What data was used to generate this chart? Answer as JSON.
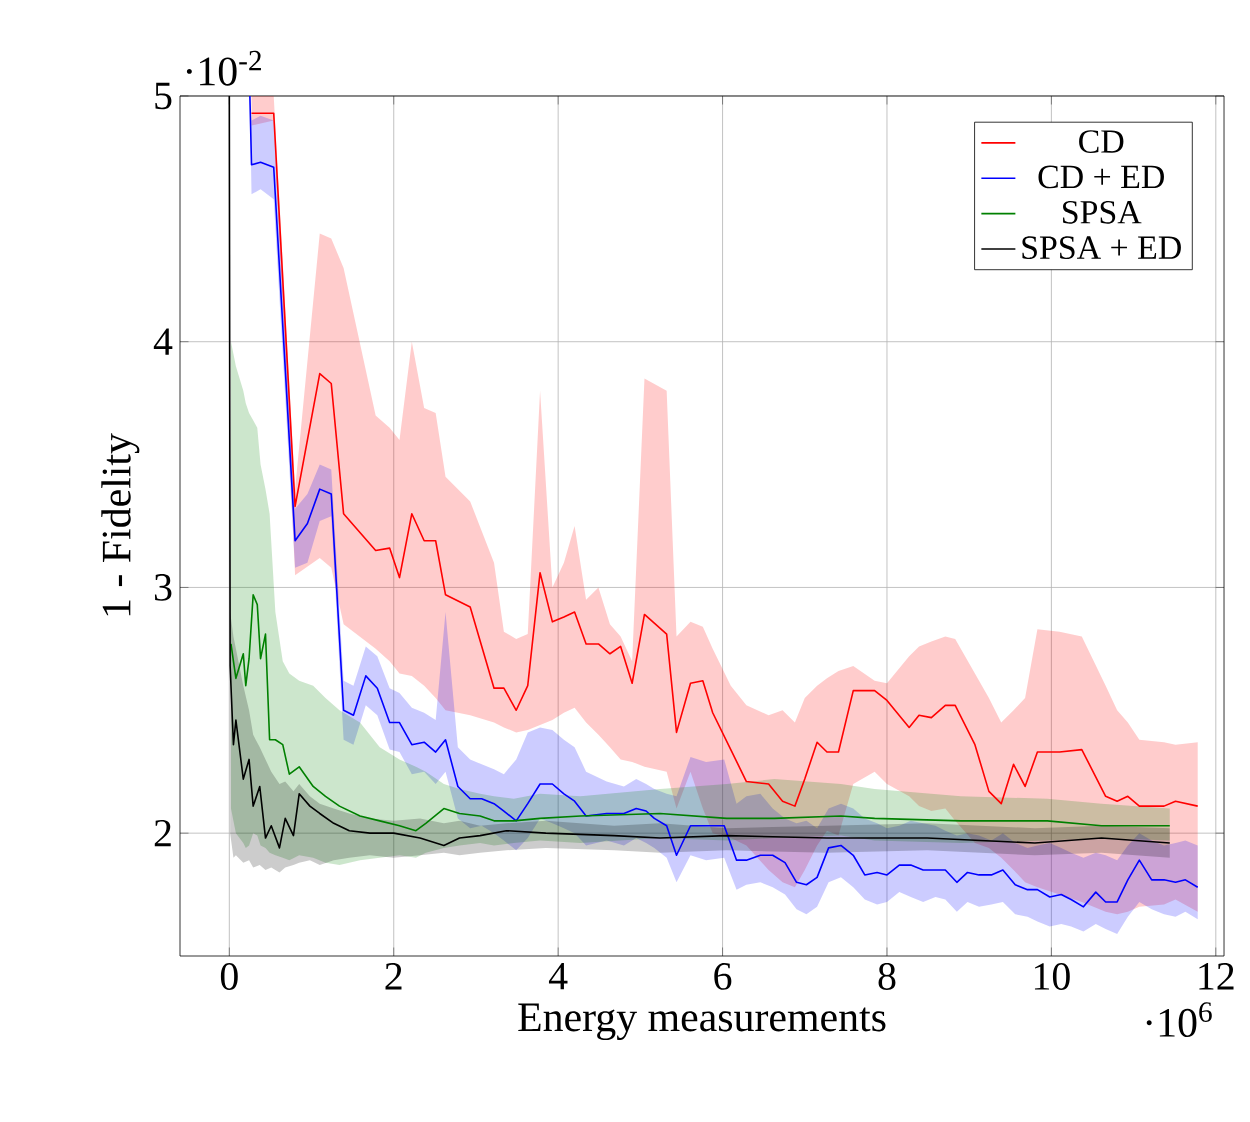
{
  "chart_data": {
    "type": "line",
    "xlabel": "Energy measurements",
    "ylabel": "1 - Fidelity",
    "annotations": [
      "·10$^{-2}$",
      "·10$^{6}$"
    ],
    "xlim": [
      -0.6,
      12.1
    ],
    "ylim": [
      1.5,
      5
    ],
    "xticks": [
      0,
      2,
      4,
      6,
      8,
      10,
      12
    ],
    "yticks": [
      2,
      3,
      4,
      5
    ],
    "grid": true,
    "legend": "top right",
    "line_style": "solid",
    "series": [
      {
        "name": "CD",
        "color": "#ff0000",
        "x": [
          0.27,
          0.54,
          0.8,
          1.1,
          1.24,
          1.39,
          1.78,
          1.95,
          2.07,
          2.22,
          2.37,
          2.51,
          2.63,
          2.93,
          3.22,
          3.34,
          3.49,
          3.63,
          3.78,
          3.93,
          4.07,
          4.2,
          4.34,
          4.49,
          4.63,
          4.76,
          4.9,
          5.05,
          5.32,
          5.44,
          5.61,
          5.76,
          5.88,
          6.1,
          6.29,
          6.56,
          6.73,
          6.88,
          7.0,
          7.15,
          7.27,
          7.41,
          7.59,
          7.85,
          8.0,
          8.27,
          8.39,
          8.54,
          8.71,
          8.83,
          9.07,
          9.24,
          9.39,
          9.54,
          9.68,
          9.83,
          10.1,
          10.37,
          10.66,
          10.8,
          10.93,
          11.07,
          11.37,
          11.51,
          11.78
        ],
        "values": [
          4.93,
          4.93,
          3.33,
          3.87,
          3.83,
          3.3,
          3.15,
          3.16,
          3.04,
          3.3,
          3.19,
          3.19,
          2.97,
          2.92,
          2.59,
          2.59,
          2.5,
          2.6,
          3.06,
          2.86,
          2.88,
          2.9,
          2.77,
          2.77,
          2.73,
          2.76,
          2.61,
          2.89,
          2.81,
          2.41,
          2.61,
          2.62,
          2.49,
          2.34,
          2.21,
          2.2,
          2.13,
          2.11,
          2.22,
          2.37,
          2.33,
          2.33,
          2.58,
          2.58,
          2.54,
          2.43,
          2.48,
          2.47,
          2.52,
          2.52,
          2.36,
          2.17,
          2.12,
          2.28,
          2.19,
          2.33,
          2.33,
          2.34,
          2.15,
          2.13,
          2.15,
          2.11,
          2.11,
          2.13,
          2.11
        ],
        "upper": [
          5.0,
          5.0,
          3.4,
          4.44,
          4.42,
          4.3,
          3.7,
          3.65,
          3.6,
          4.0,
          3.73,
          3.71,
          3.45,
          3.35,
          3.1,
          2.82,
          2.79,
          2.81,
          3.8,
          3.0,
          3.1,
          3.25,
          2.95,
          3.0,
          2.85,
          2.8,
          2.7,
          3.85,
          3.8,
          2.8,
          2.86,
          2.84,
          2.75,
          2.6,
          2.52,
          2.48,
          2.5,
          2.45,
          2.55,
          2.6,
          2.63,
          2.66,
          2.68,
          2.62,
          2.61,
          2.72,
          2.76,
          2.78,
          2.8,
          2.79,
          2.65,
          2.55,
          2.45,
          2.5,
          2.55,
          2.83,
          2.82,
          2.8,
          2.6,
          2.5,
          2.45,
          2.38,
          2.37,
          2.36,
          2.37
        ],
        "lower": [
          4.88,
          4.9,
          3.05,
          3.12,
          3.08,
          2.85,
          2.75,
          2.7,
          2.65,
          2.64,
          2.6,
          2.55,
          2.5,
          2.48,
          2.45,
          2.43,
          2.41,
          2.42,
          2.44,
          2.46,
          2.49,
          2.51,
          2.45,
          2.4,
          2.35,
          2.3,
          2.29,
          2.27,
          2.25,
          2.1,
          2.25,
          2.1,
          2.0,
          1.98,
          1.95,
          1.85,
          1.8,
          1.78,
          1.85,
          1.95,
          2.01,
          1.99,
          2.2,
          2.25,
          2.2,
          2.15,
          2.11,
          2.09,
          2.1,
          2.05,
          1.96,
          1.94,
          1.9,
          1.85,
          1.8,
          1.78,
          1.75,
          1.72,
          1.68,
          1.67,
          1.68,
          1.7,
          1.71,
          1.73,
          1.68
        ]
      },
      {
        "name": "CD + ED",
        "color": "#0000ff",
        "x": [
          0.25,
          0.27,
          0.38,
          0.54,
          0.8,
          0.95,
          1.1,
          1.24,
          1.39,
          1.51,
          1.66,
          1.8,
          1.95,
          2.07,
          2.22,
          2.37,
          2.51,
          2.63,
          2.78,
          2.93,
          3.07,
          3.22,
          3.34,
          3.49,
          3.63,
          3.78,
          3.93,
          4.07,
          4.2,
          4.34,
          4.59,
          4.8,
          4.95,
          5.07,
          5.17,
          5.32,
          5.44,
          5.61,
          5.8,
          6.02,
          6.17,
          6.29,
          6.46,
          6.61,
          6.76,
          6.9,
          7.02,
          7.15,
          7.29,
          7.44,
          7.59,
          7.73,
          7.88,
          8.0,
          8.15,
          8.29,
          8.44,
          8.59,
          8.71,
          8.85,
          8.98,
          9.12,
          9.27,
          9.41,
          9.56,
          9.71,
          9.83,
          9.98,
          10.12,
          10.24,
          10.39,
          10.54,
          10.66,
          10.8,
          10.93,
          11.07,
          11.22,
          11.37,
          11.51,
          11.63,
          11.78
        ],
        "values": [
          5.0,
          4.72,
          4.73,
          4.71,
          3.19,
          3.26,
          3.4,
          3.38,
          2.5,
          2.48,
          2.64,
          2.59,
          2.45,
          2.45,
          2.36,
          2.37,
          2.33,
          2.38,
          2.19,
          2.14,
          2.14,
          2.12,
          2.09,
          2.05,
          2.12,
          2.2,
          2.2,
          2.16,
          2.13,
          2.07,
          2.08,
          2.08,
          2.1,
          2.09,
          2.06,
          2.03,
          1.91,
          2.03,
          2.03,
          2.03,
          1.89,
          1.89,
          1.91,
          1.91,
          1.88,
          1.8,
          1.79,
          1.82,
          1.94,
          1.95,
          1.91,
          1.83,
          1.84,
          1.83,
          1.87,
          1.87,
          1.85,
          1.85,
          1.85,
          1.8,
          1.84,
          1.83,
          1.83,
          1.85,
          1.79,
          1.77,
          1.77,
          1.74,
          1.75,
          1.73,
          1.7,
          1.76,
          1.72,
          1.72,
          1.81,
          1.89,
          1.81,
          1.81,
          1.8,
          1.81,
          1.78
        ],
        "upper": [
          5.0,
          4.9,
          4.92,
          4.9,
          3.32,
          3.38,
          3.5,
          3.48,
          2.62,
          2.6,
          2.76,
          2.72,
          2.59,
          2.57,
          2.51,
          2.49,
          2.46,
          2.9,
          2.35,
          2.3,
          2.28,
          2.26,
          2.24,
          2.3,
          2.41,
          2.43,
          2.42,
          2.38,
          2.35,
          2.25,
          2.21,
          2.19,
          2.22,
          2.2,
          2.18,
          2.16,
          2.15,
          2.31,
          2.29,
          2.3,
          2.12,
          2.15,
          2.16,
          2.1,
          2.06,
          2.04,
          2.05,
          2.02,
          2.1,
          2.12,
          2.1,
          2.06,
          2.04,
          2.02,
          2.03,
          2.05,
          2.04,
          2.03,
          2.01,
          1.99,
          2.0,
          1.99,
          1.97,
          2.0,
          1.96,
          1.94,
          1.95,
          1.96,
          1.94,
          1.92,
          1.9,
          1.92,
          1.91,
          1.89,
          1.95,
          2.0,
          1.97,
          1.95,
          1.96,
          1.97,
          1.95
        ],
        "lower": [
          4.98,
          4.6,
          4.62,
          4.58,
          3.08,
          3.1,
          3.27,
          3.29,
          2.38,
          2.36,
          2.52,
          2.48,
          2.34,
          2.33,
          2.24,
          2.25,
          2.2,
          2.25,
          2.06,
          2.02,
          2.03,
          2.0,
          1.97,
          1.93,
          1.98,
          2.06,
          2.04,
          2.02,
          2.0,
          1.95,
          1.97,
          1.95,
          1.98,
          1.96,
          1.94,
          1.9,
          1.8,
          1.91,
          1.89,
          1.9,
          1.77,
          1.79,
          1.8,
          1.78,
          1.75,
          1.69,
          1.67,
          1.7,
          1.8,
          1.82,
          1.78,
          1.73,
          1.71,
          1.72,
          1.76,
          1.74,
          1.72,
          1.74,
          1.73,
          1.68,
          1.72,
          1.7,
          1.71,
          1.72,
          1.67,
          1.66,
          1.64,
          1.62,
          1.63,
          1.62,
          1.6,
          1.63,
          1.61,
          1.59,
          1.66,
          1.72,
          1.69,
          1.67,
          1.66,
          1.68,
          1.65
        ]
      },
      {
        "name": "SPSA",
        "color": "#008000",
        "x": [
          0.02,
          0.08,
          0.17,
          0.2,
          0.24,
          0.29,
          0.34,
          0.38,
          0.44,
          0.49,
          0.56,
          0.65,
          0.73,
          0.85,
          1.02,
          1.17,
          1.34,
          1.59,
          1.83,
          2.07,
          2.27,
          2.39,
          2.61,
          2.8,
          3.05,
          3.22,
          3.46,
          3.78,
          4.27,
          5.24,
          6.05,
          6.63,
          7.44,
          7.85,
          8.9,
          9.95,
          10.61,
          11.44
        ],
        "values": [
          2.77,
          2.63,
          2.73,
          2.6,
          2.71,
          2.97,
          2.93,
          2.71,
          2.81,
          2.38,
          2.38,
          2.36,
          2.24,
          2.27,
          2.19,
          2.15,
          2.11,
          2.07,
          2.05,
          2.03,
          2.01,
          2.04,
          2.1,
          2.08,
          2.07,
          2.05,
          2.05,
          2.06,
          2.07,
          2.08,
          2.06,
          2.06,
          2.07,
          2.06,
          2.05,
          2.05,
          2.03,
          2.03
        ],
        "upper": [
          4.0,
          3.9,
          3.8,
          3.75,
          3.71,
          3.68,
          3.65,
          3.5,
          3.4,
          3.3,
          2.9,
          2.7,
          2.65,
          2.62,
          2.6,
          2.55,
          2.5,
          2.45,
          2.35,
          2.3,
          2.27,
          2.25,
          2.2,
          2.18,
          2.16,
          2.15,
          2.14,
          2.16,
          2.15,
          2.18,
          2.2,
          2.22,
          2.2,
          2.18,
          2.15,
          2.14,
          2.12,
          2.1
        ],
        "lower": [
          2.1,
          2.0,
          1.96,
          1.94,
          1.95,
          2.0,
          1.99,
          1.95,
          1.94,
          1.92,
          1.91,
          1.9,
          1.89,
          1.91,
          1.9,
          1.88,
          1.87,
          1.89,
          1.9,
          1.91,
          1.9,
          1.92,
          1.94,
          1.95,
          1.96,
          1.95,
          1.96,
          1.97,
          1.96,
          1.98,
          1.97,
          1.98,
          1.99,
          1.97,
          1.96,
          1.97,
          1.98,
          1.97
        ]
      },
      {
        "name": "SPSA + ED",
        "color": "#000000",
        "x": [
          0,
          0.01,
          0.05,
          0.08,
          0.17,
          0.24,
          0.29,
          0.37,
          0.44,
          0.51,
          0.61,
          0.68,
          0.78,
          0.85,
          0.98,
          1.1,
          1.27,
          1.46,
          1.71,
          2.0,
          2.32,
          2.61,
          2.8,
          3.05,
          3.37,
          3.85,
          4.68,
          5.24,
          6.05,
          7.27,
          8.49,
          9.8,
          10.61,
          11.44
        ],
        "values": [
          5.0,
          2.68,
          2.36,
          2.46,
          2.22,
          2.3,
          2.11,
          2.19,
          1.98,
          2.03,
          1.94,
          2.06,
          1.99,
          2.16,
          2.11,
          2.08,
          2.04,
          2.01,
          2.0,
          2.0,
          1.98,
          1.95,
          1.98,
          1.99,
          2.01,
          2.0,
          1.99,
          1.98,
          1.99,
          1.98,
          1.98,
          1.96,
          1.98,
          1.96
        ],
        "upper": [
          5.0,
          2.9,
          2.8,
          2.75,
          2.6,
          2.5,
          2.4,
          2.35,
          2.3,
          2.25,
          2.2,
          2.21,
          2.17,
          2.2,
          2.15,
          2.12,
          2.1,
          2.08,
          2.06,
          2.05,
          2.06,
          2.04,
          2.05,
          2.03,
          2.04,
          2.05,
          2.03,
          2.04,
          2.02,
          2.03,
          2.04,
          2.02,
          2.03,
          2.02
        ],
        "lower": [
          5.0,
          2.0,
          1.9,
          1.91,
          1.88,
          1.89,
          1.86,
          1.87,
          1.85,
          1.86,
          1.84,
          1.86,
          1.87,
          1.88,
          1.89,
          1.87,
          1.89,
          1.9,
          1.91,
          1.9,
          1.91,
          1.92,
          1.91,
          1.92,
          1.93,
          1.94,
          1.93,
          1.92,
          1.93,
          1.92,
          1.93,
          1.91,
          1.92,
          1.9
        ]
      }
    ]
  }
}
